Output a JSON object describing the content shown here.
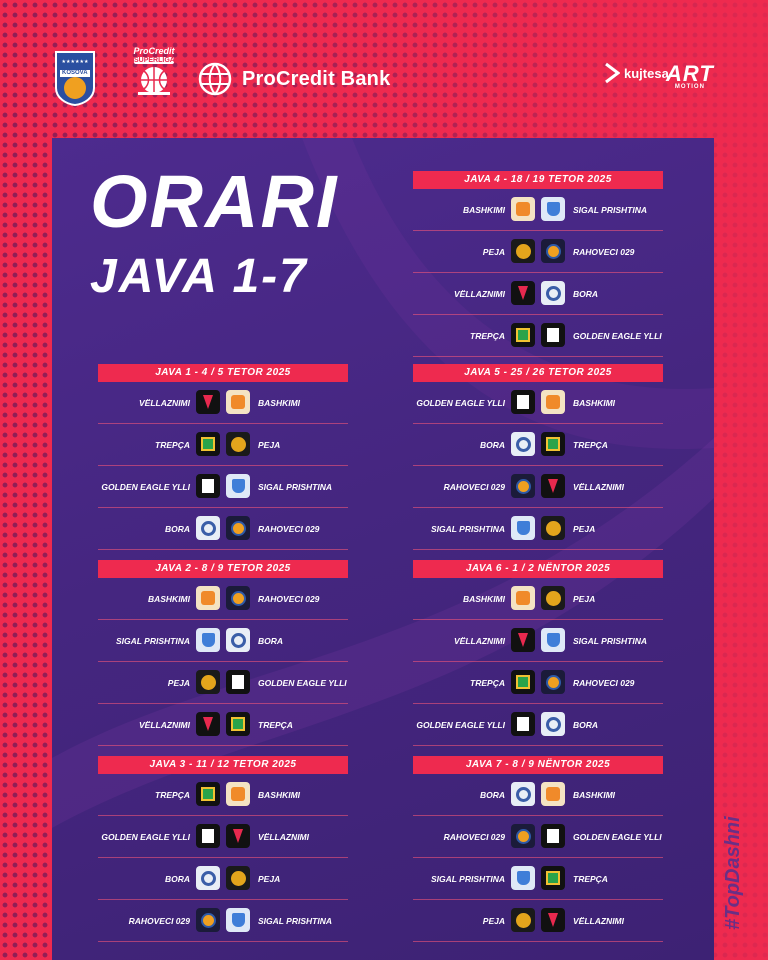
{
  "header": {
    "kosova_label": "KOSOVA",
    "superliga_top": "ProCredit",
    "superliga_label": "SUPERLIGA",
    "bank_name": "ProCredit Bank",
    "kujtesa": "kujtesa",
    "art_big": "ART",
    "art_small": "MOTION"
  },
  "title_line1": "ORARI",
  "title_line2": "JAVA 1-7",
  "hashtag": "#TopDashni",
  "weeks": [
    {
      "label": "JAVA 1  -  4 / 5 TETOR 2025",
      "matches": [
        {
          "home": "VËLLAZNIMI",
          "home_logo": "vellaznimi",
          "away": "BASHKIMI",
          "away_logo": "bashkimi"
        },
        {
          "home": "TREPÇA",
          "home_logo": "trepca",
          "away": "PEJA",
          "away_logo": "peja"
        },
        {
          "home": "GOLDEN EAGLE YLLI",
          "home_logo": "golden",
          "away": "SIGAL PRISHTINA",
          "away_logo": "sigal"
        },
        {
          "home": "BORA",
          "home_logo": "bora",
          "away": "RAHOVECI 029",
          "away_logo": "rahoveci"
        }
      ]
    },
    {
      "label": "JAVA 2  -  8 / 9 TETOR 2025",
      "matches": [
        {
          "home": "BASHKIMI",
          "home_logo": "bashkimi",
          "away": "RAHOVECI 029",
          "away_logo": "rahoveci"
        },
        {
          "home": "SIGAL PRISHTINA",
          "home_logo": "sigal",
          "away": "BORA",
          "away_logo": "bora"
        },
        {
          "home": "PEJA",
          "home_logo": "peja",
          "away": "GOLDEN EAGLE YLLI",
          "away_logo": "golden"
        },
        {
          "home": "VËLLAZNIMI",
          "home_logo": "vellaznimi",
          "away": "TREPÇA",
          "away_logo": "trepca"
        }
      ]
    },
    {
      "label": "JAVA 3  -  11 / 12 TETOR 2025",
      "matches": [
        {
          "home": "TREPÇA",
          "home_logo": "trepca",
          "away": "BASHKIMI",
          "away_logo": "bashkimi"
        },
        {
          "home": "GOLDEN EAGLE YLLI",
          "home_logo": "golden",
          "away": "VËLLAZNIMI",
          "away_logo": "vellaznimi"
        },
        {
          "home": "BORA",
          "home_logo": "bora",
          "away": "PEJA",
          "away_logo": "peja"
        },
        {
          "home": "RAHOVECI 029",
          "home_logo": "rahoveci",
          "away": "SIGAL PRISHTINA",
          "away_logo": "sigal"
        }
      ]
    },
    {
      "label": "JAVA 4  -  18 / 19 TETOR 2025",
      "matches": [
        {
          "home": "BASHKIMI",
          "home_logo": "bashkimi",
          "away": "SIGAL PRISHTINA",
          "away_logo": "sigal"
        },
        {
          "home": "PEJA",
          "home_logo": "peja",
          "away": "RAHOVECI 029",
          "away_logo": "rahoveci"
        },
        {
          "home": "VËLLAZNIMI",
          "home_logo": "vellaznimi",
          "away": "BORA",
          "away_logo": "bora"
        },
        {
          "home": "TREPÇA",
          "home_logo": "trepca",
          "away": "GOLDEN EAGLE YLLI",
          "away_logo": "golden"
        }
      ]
    },
    {
      "label": "JAVA 5  -  25 / 26 TETOR 2025",
      "matches": [
        {
          "home": "GOLDEN EAGLE YLLI",
          "home_logo": "golden",
          "away": "BASHKIMI",
          "away_logo": "bashkimi"
        },
        {
          "home": "BORA",
          "home_logo": "bora",
          "away": "TREPÇA",
          "away_logo": "trepca"
        },
        {
          "home": "RAHOVECI 029",
          "home_logo": "rahoveci",
          "away": "VËLLAZNIMI",
          "away_logo": "vellaznimi"
        },
        {
          "home": "SIGAL PRISHTINA",
          "home_logo": "sigal",
          "away": "PEJA",
          "away_logo": "peja"
        }
      ]
    },
    {
      "label": "JAVA 6  -  1 / 2 NËNTOR 2025",
      "matches": [
        {
          "home": "BASHKIMI",
          "home_logo": "bashkimi",
          "away": "PEJA",
          "away_logo": "peja"
        },
        {
          "home": "VËLLAZNIMI",
          "home_logo": "vellaznimi",
          "away": "SIGAL PRISHTINA",
          "away_logo": "sigal"
        },
        {
          "home": "TREPÇA",
          "home_logo": "trepca",
          "away": "RAHOVECI 029",
          "away_logo": "rahoveci"
        },
        {
          "home": "GOLDEN EAGLE YLLI",
          "home_logo": "golden",
          "away": "BORA",
          "away_logo": "bora"
        }
      ]
    },
    {
      "label": "JAVA 7  -  8 / 9 NËNTOR 2025",
      "matches": [
        {
          "home": "BORA",
          "home_logo": "bora",
          "away": "BASHKIMI",
          "away_logo": "bashkimi"
        },
        {
          "home": "RAHOVECI 029",
          "home_logo": "rahoveci",
          "away": "GOLDEN EAGLE YLLI",
          "away_logo": "golden"
        },
        {
          "home": "SIGAL PRISHTINA",
          "home_logo": "sigal",
          "away": "TREPÇA",
          "away_logo": "trepca"
        },
        {
          "home": "PEJA",
          "home_logo": "peja",
          "away": "VËLLAZNIMI",
          "away_logo": "vellaznimi"
        }
      ]
    }
  ]
}
